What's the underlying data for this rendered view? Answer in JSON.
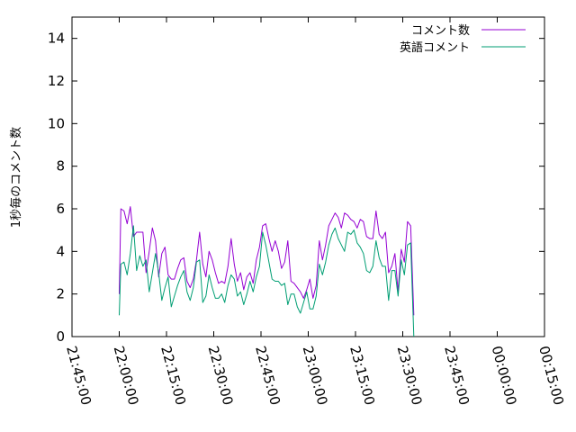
{
  "chart_data": {
    "type": "line",
    "ylabel": "1秒毎のコメント数",
    "xlabel": "",
    "ylim": [
      0,
      15
    ],
    "xlim": [
      "21:45:00",
      "00:15:00"
    ],
    "y_ticks": [
      "0",
      "2",
      "4",
      "6",
      "8",
      "10",
      "12",
      "14"
    ],
    "x_ticks": [
      "21:45:00",
      "22:00:00",
      "22:15:00",
      "22:30:00",
      "22:45:00",
      "23:00:00",
      "23:15:00",
      "23:30:00",
      "23:45:00",
      "00:00:00",
      "00:15:00"
    ],
    "grid": false,
    "legend_position": "top-right",
    "x_unit": "minutes from 21:45:00",
    "series": [
      {
        "name": "コメント数",
        "color": "#9400d3",
        "points": [
          [
            15.0,
            2.0
          ],
          [
            15.5,
            6.0
          ],
          [
            16.5,
            5.9
          ],
          [
            17.5,
            5.3
          ],
          [
            18.5,
            6.1
          ],
          [
            19.5,
            4.7
          ],
          [
            20.5,
            4.9
          ],
          [
            21.5,
            4.9
          ],
          [
            22.5,
            4.9
          ],
          [
            23.5,
            3.0
          ],
          [
            24.5,
            4.0
          ],
          [
            25.5,
            5.1
          ],
          [
            26.5,
            4.5
          ],
          [
            27.5,
            2.8
          ],
          [
            28.5,
            3.9
          ],
          [
            29.5,
            4.2
          ],
          [
            30.5,
            2.9
          ],
          [
            31.5,
            2.7
          ],
          [
            32.5,
            2.7
          ],
          [
            33.5,
            3.2
          ],
          [
            34.5,
            3.6
          ],
          [
            35.5,
            3.7
          ],
          [
            36.5,
            2.6
          ],
          [
            37.5,
            2.3
          ],
          [
            38.5,
            2.7
          ],
          [
            39.5,
            3.6
          ],
          [
            40.5,
            4.9
          ],
          [
            41.5,
            3.4
          ],
          [
            42.5,
            2.8
          ],
          [
            43.5,
            4.0
          ],
          [
            44.5,
            3.6
          ],
          [
            45.5,
            3.0
          ],
          [
            46.5,
            2.5
          ],
          [
            47.5,
            2.6
          ],
          [
            48.5,
            2.5
          ],
          [
            49.5,
            3.3
          ],
          [
            50.5,
            4.6
          ],
          [
            51.5,
            3.4
          ],
          [
            52.5,
            2.6
          ],
          [
            53.5,
            3.0
          ],
          [
            54.5,
            2.2
          ],
          [
            55.5,
            2.8
          ],
          [
            56.5,
            3.0
          ],
          [
            57.5,
            2.5
          ],
          [
            58.5,
            3.6
          ],
          [
            59.5,
            4.2
          ],
          [
            60.5,
            5.2
          ],
          [
            61.5,
            5.3
          ],
          [
            62.5,
            4.6
          ],
          [
            63.5,
            4.0
          ],
          [
            64.5,
            4.5
          ],
          [
            65.5,
            4.0
          ],
          [
            66.5,
            3.2
          ],
          [
            67.5,
            3.5
          ],
          [
            68.5,
            4.5
          ],
          [
            69.5,
            2.6
          ],
          [
            70.5,
            2.5
          ],
          [
            71.5,
            2.3
          ],
          [
            72.5,
            2.1
          ],
          [
            73.5,
            1.8
          ],
          [
            74.5,
            2.2
          ],
          [
            75.5,
            2.7
          ],
          [
            76.5,
            1.8
          ],
          [
            77.5,
            2.4
          ],
          [
            78.5,
            4.5
          ],
          [
            79.5,
            3.6
          ],
          [
            80.5,
            4.3
          ],
          [
            81.5,
            5.2
          ],
          [
            82.5,
            5.5
          ],
          [
            83.5,
            5.8
          ],
          [
            84.5,
            5.6
          ],
          [
            85.5,
            5.1
          ],
          [
            86.5,
            5.8
          ],
          [
            87.5,
            5.7
          ],
          [
            88.5,
            5.5
          ],
          [
            89.5,
            5.4
          ],
          [
            90.5,
            5.1
          ],
          [
            91.5,
            5.5
          ],
          [
            92.5,
            5.4
          ],
          [
            93.5,
            4.7
          ],
          [
            94.5,
            4.6
          ],
          [
            95.5,
            4.6
          ],
          [
            96.5,
            5.9
          ],
          [
            97.5,
            4.8
          ],
          [
            98.5,
            4.6
          ],
          [
            99.5,
            4.9
          ],
          [
            100.5,
            3.0
          ],
          [
            101.5,
            3.3
          ],
          [
            102.5,
            3.9
          ],
          [
            103.5,
            2.1
          ],
          [
            104.5,
            4.1
          ],
          [
            105.5,
            3.5
          ],
          [
            106.5,
            5.4
          ],
          [
            107.5,
            5.2
          ],
          [
            108.5,
            1.0
          ]
        ]
      },
      {
        "name": "英語コメント",
        "color": "#009e73",
        "points": [
          [
            15.0,
            1.0
          ],
          [
            15.5,
            3.4
          ],
          [
            16.5,
            3.5
          ],
          [
            17.5,
            2.9
          ],
          [
            18.5,
            3.9
          ],
          [
            19.5,
            5.2
          ],
          [
            20.5,
            3.1
          ],
          [
            21.5,
            3.8
          ],
          [
            22.5,
            3.3
          ],
          [
            23.5,
            3.6
          ],
          [
            24.5,
            2.1
          ],
          [
            25.5,
            3.0
          ],
          [
            26.5,
            3.9
          ],
          [
            27.5,
            3.0
          ],
          [
            28.5,
            1.7
          ],
          [
            29.5,
            2.3
          ],
          [
            30.5,
            2.8
          ],
          [
            31.5,
            1.4
          ],
          [
            32.5,
            1.9
          ],
          [
            33.5,
            2.4
          ],
          [
            34.5,
            2.8
          ],
          [
            35.5,
            3.1
          ],
          [
            36.5,
            2.1
          ],
          [
            37.5,
            1.7
          ],
          [
            38.5,
            2.3
          ],
          [
            39.5,
            3.5
          ],
          [
            40.5,
            3.6
          ],
          [
            41.5,
            1.6
          ],
          [
            42.5,
            1.9
          ],
          [
            43.5,
            2.9
          ],
          [
            44.5,
            2.3
          ],
          [
            45.5,
            1.8
          ],
          [
            46.5,
            1.8
          ],
          [
            47.5,
            2.0
          ],
          [
            48.5,
            1.6
          ],
          [
            49.5,
            2.4
          ],
          [
            50.5,
            2.9
          ],
          [
            51.5,
            2.7
          ],
          [
            52.5,
            1.9
          ],
          [
            53.5,
            2.1
          ],
          [
            54.5,
            1.5
          ],
          [
            55.5,
            2.0
          ],
          [
            56.5,
            2.6
          ],
          [
            57.5,
            2.1
          ],
          [
            58.5,
            2.8
          ],
          [
            59.5,
            3.3
          ],
          [
            60.5,
            4.9
          ],
          [
            61.5,
            4.3
          ],
          [
            62.5,
            3.5
          ],
          [
            63.5,
            2.7
          ],
          [
            64.5,
            2.6
          ],
          [
            65.5,
            2.6
          ],
          [
            66.5,
            2.4
          ],
          [
            67.5,
            2.5
          ],
          [
            68.5,
            1.5
          ],
          [
            69.5,
            2.0
          ],
          [
            70.5,
            2.0
          ],
          [
            71.5,
            1.4
          ],
          [
            72.5,
            1.1
          ],
          [
            73.5,
            1.6
          ],
          [
            74.5,
            2.1
          ],
          [
            75.5,
            1.3
          ],
          [
            76.5,
            1.3
          ],
          [
            77.5,
            1.9
          ],
          [
            78.5,
            3.4
          ],
          [
            79.5,
            2.9
          ],
          [
            80.5,
            3.5
          ],
          [
            81.5,
            4.3
          ],
          [
            82.5,
            4.8
          ],
          [
            83.5,
            5.1
          ],
          [
            84.5,
            4.6
          ],
          [
            85.5,
            4.3
          ],
          [
            86.5,
            4.0
          ],
          [
            87.5,
            4.9
          ],
          [
            88.5,
            4.8
          ],
          [
            89.5,
            5.0
          ],
          [
            90.5,
            4.4
          ],
          [
            91.5,
            4.2
          ],
          [
            92.5,
            3.9
          ],
          [
            93.5,
            3.1
          ],
          [
            94.5,
            3.0
          ],
          [
            95.5,
            3.3
          ],
          [
            96.5,
            4.5
          ],
          [
            97.5,
            3.7
          ],
          [
            98.5,
            3.3
          ],
          [
            99.5,
            3.3
          ],
          [
            100.5,
            1.7
          ],
          [
            101.5,
            3.1
          ],
          [
            102.5,
            3.1
          ],
          [
            103.5,
            1.9
          ],
          [
            104.5,
            3.6
          ],
          [
            105.5,
            2.9
          ],
          [
            106.5,
            4.3
          ],
          [
            107.5,
            4.4
          ],
          [
            108.5,
            0.0
          ]
        ]
      }
    ]
  }
}
